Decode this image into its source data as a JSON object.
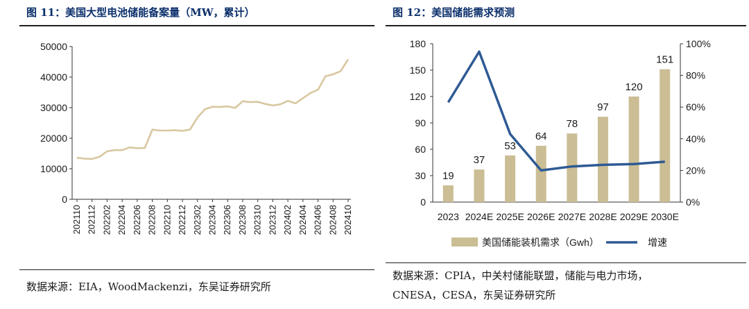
{
  "left_panel": {
    "title": "图 11：美国大型电池储能备案量（MW，累计）",
    "source": "数据来源：EIA，WoodMackenzi，东吴证券研究所"
  },
  "right_panel": {
    "title": "图 12：美国储能需求预测",
    "source_line1": "数据来源：CPIA，中关村储能联盟，储能与电力市场，",
    "source_line2": "CNESA，CESA，东吴证券研究所"
  },
  "colors": {
    "line_left": "#d8c7a0",
    "bar": "#cbbd94",
    "growth_line": "#2e5a94",
    "title": "#0b2f6b"
  },
  "chart_data": [
    {
      "type": "line",
      "title": "",
      "ylim": [
        0,
        50000
      ],
      "yticks": [
        "0",
        "10000",
        "20000",
        "30000",
        "40000",
        "50000"
      ],
      "x_tick_labels": [
        "202110",
        "202112",
        "202202",
        "202204",
        "202206",
        "202208",
        "202210",
        "202212",
        "202302",
        "202304",
        "202306",
        "202308",
        "202310",
        "202312",
        "202402",
        "202404",
        "202406",
        "202408",
        "202410"
      ],
      "x": [
        "202110",
        "202111",
        "202112",
        "202201",
        "202202",
        "202203",
        "202204",
        "202205",
        "202206",
        "202207",
        "202208",
        "202209",
        "202210",
        "202211",
        "202212",
        "202301",
        "202302",
        "202303",
        "202304",
        "202305",
        "202306",
        "202307",
        "202308",
        "202309",
        "202310",
        "202311",
        "202312",
        "202401",
        "202402",
        "202403",
        "202404",
        "202405",
        "202406",
        "202407",
        "202408",
        "202409",
        "202410"
      ],
      "series": [
        {
          "values": [
            13600,
            13300,
            13200,
            13900,
            15700,
            16100,
            16100,
            17000,
            16700,
            16800,
            22800,
            22500,
            22500,
            22600,
            22400,
            22800,
            26800,
            29500,
            30300,
            30200,
            30400,
            29900,
            32100,
            31800,
            31900,
            31200,
            30700,
            31100,
            32200,
            31400,
            33100,
            34800,
            35900,
            40300,
            40900,
            41900,
            45800
          ]
        }
      ],
      "grid": false
    },
    {
      "type": "bar",
      "title": "",
      "categories": [
        "2023",
        "2024E",
        "2025E",
        "2026E",
        "2027E",
        "2028E",
        "2029E",
        "2030E"
      ],
      "series": [
        {
          "name": "美国储能装机需求（Gwh）",
          "type": "bar",
          "axis": "left",
          "values": [
            19,
            37,
            53,
            64,
            78,
            97,
            120,
            151
          ],
          "data_labels": [
            "19",
            "37",
            "53",
            "64",
            "78",
            "97",
            "120",
            "151"
          ]
        },
        {
          "name": "增速",
          "type": "line",
          "axis": "right",
          "values": [
            0.63,
            0.95,
            0.43,
            0.2,
            0.225,
            0.235,
            0.24,
            0.255
          ]
        }
      ],
      "ylim_left": [
        0,
        180
      ],
      "yticks_left": [
        "0",
        "30",
        "60",
        "90",
        "120",
        "150",
        "180"
      ],
      "ylim_right": [
        0,
        1.0
      ],
      "yticks_right": [
        "0%",
        "20%",
        "40%",
        "60%",
        "80%",
        "100%"
      ],
      "legend_position": "bottom",
      "grid": false
    }
  ]
}
